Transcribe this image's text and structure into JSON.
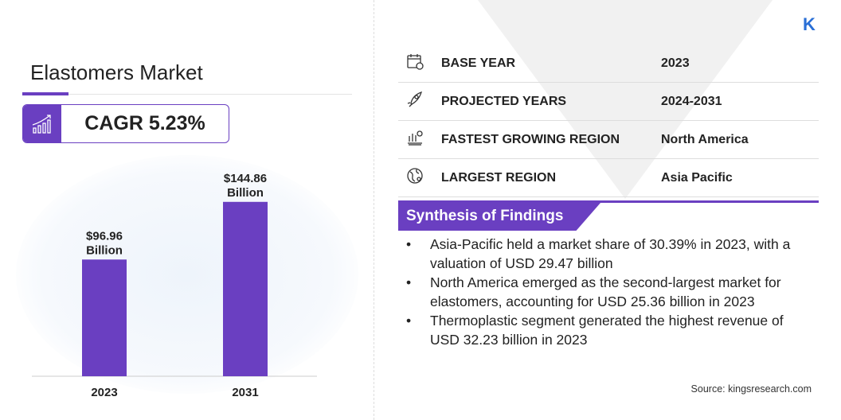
{
  "title": "Elastomers Market",
  "cagr": "CAGR 5.23%",
  "colors": {
    "accent": "#6a3fc1",
    "logo": "#2a6fd6"
  },
  "logo": "K",
  "chart_data": {
    "type": "bar",
    "categories": [
      "2023",
      "2031"
    ],
    "values": [
      96.96,
      144.86
    ],
    "data_labels": [
      [
        "$96.96",
        "Billion"
      ],
      [
        "$144.86",
        "Billion"
      ]
    ],
    "ylim": [
      0,
      150
    ],
    "grid": false
  },
  "details": [
    {
      "icon": "calendar-icon",
      "label": "BASE YEAR",
      "value": "2023"
    },
    {
      "icon": "rocket-icon",
      "label": "PROJECTED YEARS",
      "value": "2024-2031"
    },
    {
      "icon": "region-growth-icon",
      "label": "FASTEST GROWING REGION",
      "value": "North America"
    },
    {
      "icon": "globe-icon",
      "label": "LARGEST REGION",
      "value": "Asia Pacific"
    }
  ],
  "synthesis": {
    "heading": "Synthesis of Findings",
    "items": [
      "Asia-Pacific held a market share of 30.39% in 2023, with a valuation of USD 29.47 billion",
      "North America emerged as the second-largest market for elastomers, accounting for USD 25.36 billion in 2023",
      "Thermoplastic segment generated the highest revenue of USD 32.23 billion in 2023"
    ]
  },
  "source": "Source:  kingsresearch.com"
}
